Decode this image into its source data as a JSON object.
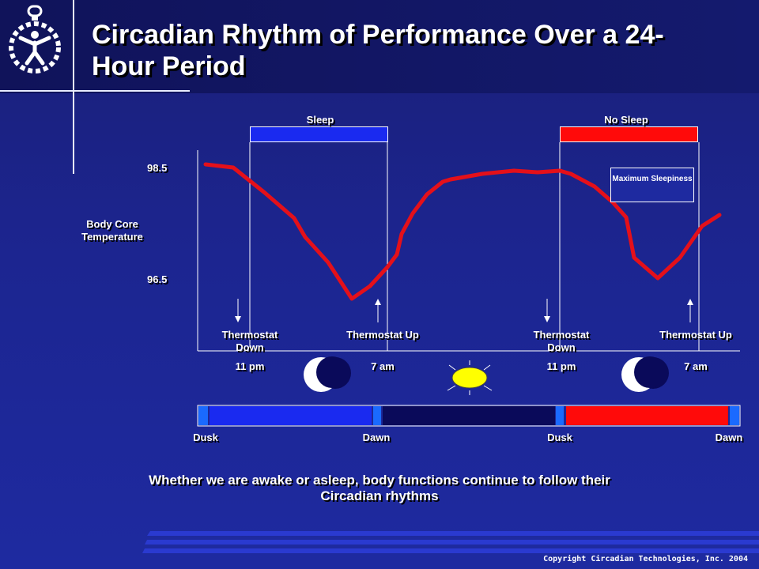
{
  "title": "Circadian Rhythm of Performance Over a 24-Hour Period",
  "labels": {
    "sleep": "Sleep",
    "no_sleep": "No Sleep",
    "y_high": "98.5",
    "y_low": "96.5",
    "y_axis": "Body Core Temperature",
    "max_sleepiness": "Maximum Sleepiness"
  },
  "events": [
    {
      "label": "Thermostat Down",
      "time": "11 pm"
    },
    {
      "label": "Thermostat Up",
      "time": "7 am"
    },
    {
      "label": "Thermostat Down",
      "time": "11 pm"
    },
    {
      "label": "Thermostat Up",
      "time": "7 am"
    }
  ],
  "timeline": [
    "Dusk",
    "Dawn",
    "Dusk",
    "Dawn"
  ],
  "caption": "Whether we are awake or asleep, body functions continue to follow their Circadian rhythms",
  "copyright": "Copyright Circadian Technologies, Inc. 2004",
  "colors": {
    "sleep": "#1a2af0",
    "no_sleep": "#ff0a0a",
    "curve": "#e4101a",
    "sun": "#ffff00",
    "night": "#0a0a5a"
  }
}
